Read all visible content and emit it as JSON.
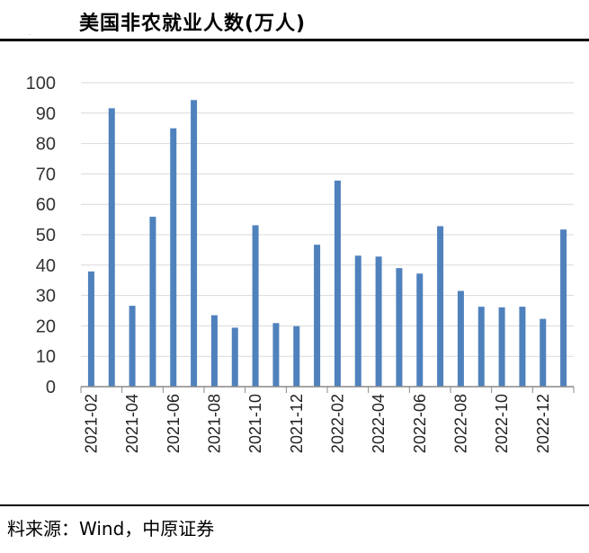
{
  "chart_data": {
    "type": "bar",
    "title": "美国非农就业人数(万人)",
    "source": "料来源：Wind，中原证券",
    "categories": [
      "2021-02",
      "2021-03",
      "2021-04",
      "2021-05",
      "2021-06",
      "2021-07",
      "2021-08",
      "2021-09",
      "2021-10",
      "2021-11",
      "2021-12",
      "2022-01",
      "2022-02",
      "2022-03",
      "2022-04",
      "2022-05",
      "2022-06",
      "2022-07",
      "2022-08",
      "2022-09",
      "2022-10",
      "2022-11",
      "2022-12",
      "2023-01"
    ],
    "x_tick_labels": [
      "2021-02",
      "2021-04",
      "2021-06",
      "2021-08",
      "2021-10",
      "2021-12",
      "2022-02",
      "2022-04",
      "2022-06",
      "2022-08",
      "2022-10",
      "2022-12"
    ],
    "values": [
      37.9,
      91.6,
      26.6,
      55.9,
      85.0,
      94.3,
      23.5,
      19.4,
      53.1,
      20.9,
      19.9,
      46.7,
      67.8,
      43.1,
      42.8,
      39.0,
      37.2,
      52.8,
      31.5,
      26.3,
      26.1,
      26.3,
      22.3,
      51.7
    ],
    "ylim": [
      0,
      100
    ],
    "yticks": [
      0,
      10,
      20,
      30,
      40,
      50,
      60,
      70,
      80,
      90,
      100
    ],
    "grid": true,
    "bar_color": "#4F81BD",
    "grid_color": "#D9D9D9"
  }
}
